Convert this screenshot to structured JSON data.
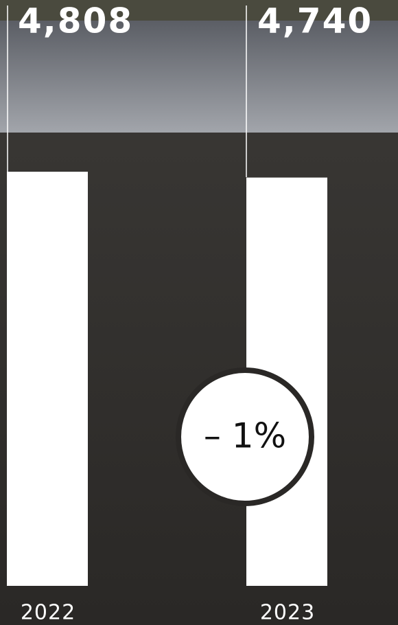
{
  "chart_data": {
    "type": "bar",
    "categories": [
      "2022",
      "2023"
    ],
    "values": [
      4808,
      4740
    ],
    "value_labels": [
      "4,808",
      "4,740"
    ],
    "color": "#ffffff",
    "annotation": "– 1%"
  }
}
